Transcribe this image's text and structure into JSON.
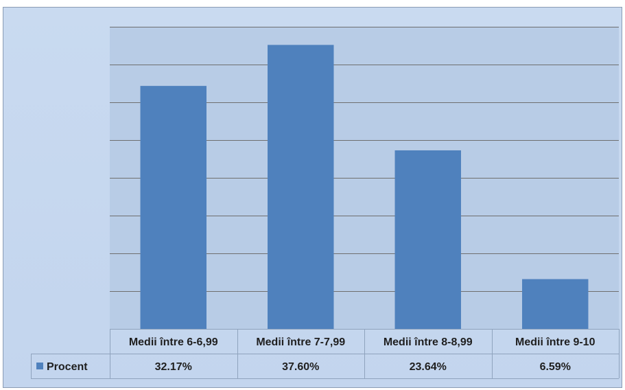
{
  "chart_data": {
    "type": "bar",
    "categories": [
      "Medii între 6-6,99",
      "Medii între 7-7,99",
      "Medii între 8-8,99",
      "Medii între 9-10"
    ],
    "series": [
      {
        "name": "Procent",
        "values": [
          32.17,
          37.6,
          23.64,
          6.59
        ],
        "labels": [
          "32.17%",
          "37.60%",
          "23.64%",
          "6.59%"
        ]
      }
    ],
    "ylim": [
      0,
      40
    ],
    "gridlines": 8,
    "grid": true,
    "legend": "data-table-left",
    "colors": {
      "bar": "#4f81bd",
      "plot_bg": "#b8cce6",
      "grid": "#6e6e6e",
      "table_border": "#8fa3bd"
    }
  }
}
